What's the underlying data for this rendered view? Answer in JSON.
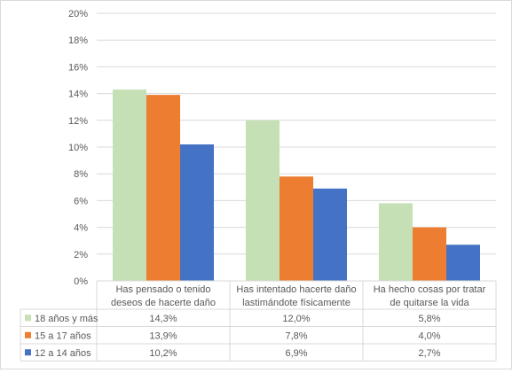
{
  "chart_data": {
    "type": "bar",
    "categories": [
      [
        "Has pensado o tenido",
        "deseos de hacerte daño"
      ],
      [
        "Has intentado hacerte daño",
        "lastimándote físicamente"
      ],
      [
        "Ha hecho cosas por tratar",
        "de quitarse la vida"
      ]
    ],
    "series": [
      {
        "name": "18 años y más",
        "color": "#c5e0b4",
        "values": [
          14.3,
          12.0,
          5.8
        ],
        "labels": [
          "14,3%",
          "12,0%",
          "5,8%"
        ]
      },
      {
        "name": "15 a 17 años",
        "color": "#ed7d31",
        "values": [
          13.9,
          7.8,
          4.0
        ],
        "labels": [
          "13,9%",
          "7,8%",
          "4,0%"
        ]
      },
      {
        "name": "12 a 14 años",
        "color": "#4472c4",
        "values": [
          10.2,
          6.9,
          2.7
        ],
        "labels": [
          "10,2%",
          "6,9%",
          "2,7%"
        ]
      }
    ],
    "ylim": [
      0,
      20
    ],
    "yticks": [
      "0%",
      "2%",
      "4%",
      "6%",
      "8%",
      "10%",
      "12%",
      "14%",
      "16%",
      "18%",
      "20%"
    ],
    "grid": true,
    "legend": "data-table"
  }
}
